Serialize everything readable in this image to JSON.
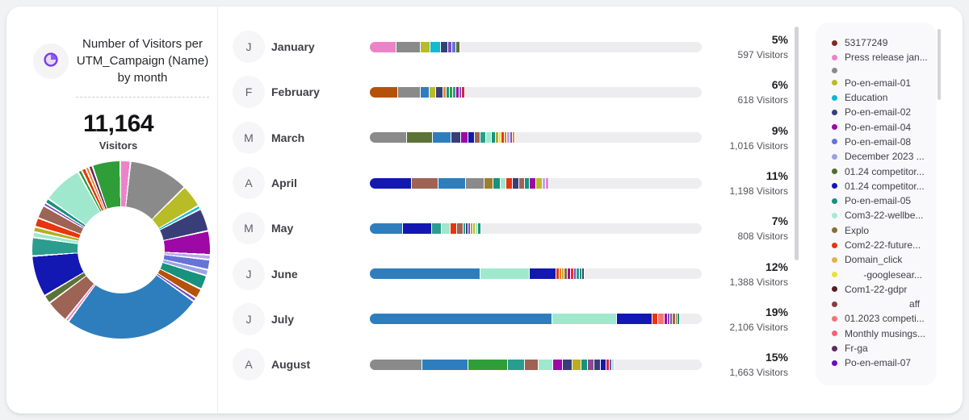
{
  "header": {
    "title": "Number of Visitors per UTM_Campaign (Name) by month",
    "icon": "donut-chart-icon"
  },
  "summary": {
    "total": "11,164",
    "label": "Visitors"
  },
  "palette": {
    "steelblue": "#2e7ebd",
    "gray": "#8a8a8a",
    "mint": "#9fe8cd",
    "navy": "#1318b2",
    "navyslate": "#3a3e78",
    "magenta": "#9d08a6",
    "olive": "#b8bc26",
    "cyan": "#16b9d4",
    "pink": "#ee82c8",
    "rust": "#b5520a",
    "orange": "#f5862c",
    "tealgreen": "#17927c",
    "green": "#2f9e38",
    "teal": "#2a9d8f",
    "violet": "#7a4fc2",
    "periwinkle": "#6674d8",
    "lightperiwinkle": "#9aa3e4",
    "olivegreen": "#5c7337",
    "brown": "#9d6354",
    "darkkhaki": "#9b7f2e",
    "red": "#e8350e",
    "crimson": "#d92433",
    "salmon": "#f4756e",
    "yellow": "#e6e33b",
    "darkyellow": "#b8ad25",
    "lightpurple": "#b9a8e8",
    "plum": "#8a4a8f",
    "orange2": "#fb7a12",
    "tan": "#8a6b35",
    "darkpurple": "#5c2a60"
  },
  "months": [
    {
      "initial": "J",
      "name": "January",
      "percent": "5%",
      "visitors": "597 Visitors",
      "segments": [
        [
          "pink",
          33
        ],
        [
          "gray",
          30
        ],
        [
          "olive",
          12
        ],
        [
          "cyan",
          13
        ],
        [
          "navyslate",
          9
        ],
        [
          "violet",
          5
        ],
        [
          "periwinkle",
          5
        ],
        [
          "olivegreen",
          5
        ]
      ]
    },
    {
      "initial": "F",
      "name": "February",
      "percent": "6%",
      "visitors": "618 Visitors",
      "segments": [
        [
          "rust",
          35
        ],
        [
          "gray",
          28
        ],
        [
          "steelblue",
          11
        ],
        [
          "olive",
          8
        ],
        [
          "navyslate",
          9
        ],
        [
          "orange",
          4
        ],
        [
          "tealgreen",
          4
        ],
        [
          "green",
          4
        ],
        [
          "teal",
          4
        ],
        [
          "magenta",
          4
        ],
        [
          "violet",
          3
        ],
        [
          "crimson",
          4
        ]
      ]
    },
    {
      "initial": "M",
      "name": "March",
      "percent": "9%",
      "visitors": "1,016 Visitors",
      "segments": [
        [
          "gray",
          46
        ],
        [
          "olivegreen",
          32
        ],
        [
          "steelblue",
          23
        ],
        [
          "navyslate",
          12
        ],
        [
          "magenta",
          9
        ],
        [
          "navy",
          8
        ],
        [
          "brown",
          7
        ],
        [
          "teal",
          7
        ],
        [
          "mint",
          7
        ],
        [
          "tealgreen",
          5
        ],
        [
          "darkyellow",
          4
        ],
        [
          "yellow",
          3
        ],
        [
          "red",
          4
        ],
        [
          "orange2",
          3
        ],
        [
          "lightpurple",
          4
        ],
        [
          "violet",
          3
        ],
        [
          "orange",
          3
        ]
      ]
    },
    {
      "initial": "A",
      "name": "April",
      "percent": "11%",
      "visitors": "1,198 Visitors",
      "segments": [
        [
          "navy",
          52
        ],
        [
          "brown",
          33
        ],
        [
          "steelblue",
          34
        ],
        [
          "gray",
          23
        ],
        [
          "darkkhaki",
          11
        ],
        [
          "tealgreen",
          9
        ],
        [
          "mint",
          7
        ],
        [
          "red",
          8
        ],
        [
          "navyslate",
          8
        ],
        [
          "brown",
          7
        ],
        [
          "tealgreen",
          6
        ],
        [
          "magenta",
          8
        ],
        [
          "olive",
          8
        ],
        [
          "lightpurple",
          4
        ],
        [
          "pink",
          4
        ]
      ]
    },
    {
      "initial": "M",
      "name": "May",
      "percent": "7%",
      "visitors": "808 Visitors",
      "segments": [
        [
          "steelblue",
          41
        ],
        [
          "navy",
          36
        ],
        [
          "teal",
          12
        ],
        [
          "mint",
          11
        ],
        [
          "red",
          8
        ],
        [
          "brown",
          8
        ],
        [
          "teal",
          3
        ],
        [
          "navyslate",
          3
        ],
        [
          "violet",
          3
        ],
        [
          "darkyellow",
          3
        ],
        [
          "olive",
          3
        ],
        [
          "mint",
          3
        ],
        [
          "tealgreen",
          4
        ]
      ]
    },
    {
      "initial": "J",
      "name": "June",
      "percent": "12%",
      "visitors": "1,388 Visitors",
      "segments": [
        [
          "steelblue",
          137
        ],
        [
          "mint",
          61
        ],
        [
          "navy",
          33
        ],
        [
          "red",
          4
        ],
        [
          "orange2",
          3
        ],
        [
          "darkyellow",
          3
        ],
        [
          "tan",
          4
        ],
        [
          "magenta",
          4
        ],
        [
          "red",
          4
        ],
        [
          "violet",
          3
        ],
        [
          "teal",
          4
        ],
        [
          "tealgreen",
          3
        ],
        [
          "navyslate",
          3
        ]
      ]
    },
    {
      "initial": "J",
      "name": "July",
      "percent": "19%",
      "visitors": "2,106 Visitors",
      "segments": [
        [
          "steelblue",
          226
        ],
        [
          "mint",
          80
        ],
        [
          "navy",
          44
        ],
        [
          "red",
          7
        ],
        [
          "salmon",
          8
        ],
        [
          "magenta",
          4
        ],
        [
          "violet",
          3
        ],
        [
          "plum",
          3
        ],
        [
          "brown",
          4
        ],
        [
          "tan",
          2
        ],
        [
          "tealgreen",
          3
        ]
      ]
    },
    {
      "initial": "A",
      "name": "August",
      "percent": "15%",
      "visitors": "1,663 Visitors",
      "segments": [
        [
          "gray",
          65
        ],
        [
          "steelblue",
          57
        ],
        [
          "green",
          49
        ],
        [
          "teal",
          21
        ],
        [
          "brown",
          17
        ],
        [
          "mint",
          18
        ],
        [
          "magenta",
          12
        ],
        [
          "navyslate",
          12
        ],
        [
          "darkyellow",
          11
        ],
        [
          "tealgreen",
          8
        ],
        [
          "plum",
          8
        ],
        [
          "navyslate",
          8
        ],
        [
          "navy",
          7
        ],
        [
          "crimson",
          4
        ],
        [
          "violet",
          3
        ],
        [
          "mint",
          3
        ]
      ]
    }
  ],
  "donut": {
    "segments": [
      [
        "pink",
        1.6
      ],
      [
        "gray",
        11
      ],
      [
        "olive",
        4
      ],
      [
        "cyan",
        0.4
      ],
      [
        "navyslate",
        4
      ],
      [
        "magenta",
        4.2
      ],
      [
        "lightpurple",
        0.6
      ],
      [
        "periwinkle",
        1.6
      ],
      [
        "lightperiwinkle",
        0.8
      ],
      [
        "tealgreen",
        2.4
      ],
      [
        "rust",
        1.6
      ],
      [
        "violet",
        0.4
      ],
      [
        "steelblue",
        26
      ],
      [
        "pink",
        0.3
      ],
      [
        "brown",
        4
      ],
      [
        "olivegreen",
        1.3
      ],
      [
        "navy",
        7.5
      ],
      [
        "teal",
        3.2
      ],
      [
        "mint",
        0.7
      ],
      [
        "darkyellow",
        0.7
      ],
      [
        "red",
        1.4
      ],
      [
        "brown",
        2.2
      ],
      [
        "violet",
        0.3
      ],
      [
        "tealgreen",
        0.6
      ],
      [
        "mint",
        7.2
      ],
      [
        "green",
        0.4
      ],
      [
        "red",
        0.5
      ],
      [
        "orange2",
        0.3
      ],
      [
        "darkpurple",
        0.4
      ],
      [
        "green",
        5
      ]
    ]
  },
  "legend": {
    "items": [
      {
        "color": "#7d2b22",
        "label": "53177249"
      },
      {
        "color": "#ee82c8",
        "label": "Press release jan..."
      },
      {
        "color": "#8a8a8a",
        "label": ""
      },
      {
        "color": "#b8bc26",
        "label": "Po-en-email-01"
      },
      {
        "color": "#0ab6d2",
        "label": "Education"
      },
      {
        "color": "#3a3e78",
        "label": "Po-en-email-02"
      },
      {
        "color": "#9d08a6",
        "label": "Po-en-email-04"
      },
      {
        "color": "#6674d8",
        "label": "Po-en-email-08"
      },
      {
        "color": "#9aa3e4",
        "label": "December 2023 ..."
      },
      {
        "color": "#556b2f",
        "label": "01.24 competitor..."
      },
      {
        "color": "#1317b5",
        "label": "01.24 competitor..."
      },
      {
        "color": "#17927c",
        "label": "Po-en-email-05"
      },
      {
        "color": "#a5ead2",
        "label": "Com3-22-wellbe..."
      },
      {
        "color": "#8a6b35",
        "label": "Explo"
      },
      {
        "color": "#e8350e",
        "label": "Com2-22-future..."
      },
      {
        "color": "#e3b04e",
        "label": "Domain_click"
      },
      {
        "color": "#e6e33b",
        "label": "       -googlesear..."
      },
      {
        "color": "#5a1c22",
        "label": "Com1-22-gdpr"
      },
      {
        "color": "#8c3a42",
        "label": "                        aff"
      },
      {
        "color": "#f4756e",
        "label": "01.2023 competi..."
      },
      {
        "color": "#fa5f78",
        "label": "Monthly musings..."
      },
      {
        "color": "#5c2a60",
        "label": "Fr-ga"
      },
      {
        "color": "#6d0bc0",
        "label": "Po-en-email-07"
      }
    ]
  },
  "chart_data": [
    {
      "type": "bar",
      "title": "Number of Visitors per UTM_Campaign (Name) by month",
      "categories": [
        "January",
        "February",
        "March",
        "April",
        "May",
        "June",
        "July",
        "August"
      ],
      "values": [
        597,
        618,
        1016,
        1198,
        808,
        1388,
        2106,
        1663
      ],
      "percent_labels": [
        "5%",
        "6%",
        "9%",
        "11%",
        "7%",
        "12%",
        "19%",
        "15%"
      ],
      "total_visitors": 11164,
      "xlabel": "",
      "ylabel": "Visitors",
      "layout": "horizontal stacked bars, one row per month, gray track as remainder, legend at right"
    },
    {
      "type": "pie",
      "title": "Visitors share by UTM campaign (donut)",
      "total_label": "11,164 Visitors",
      "approx_shares_pct": [
        1.6,
        11,
        4,
        0.4,
        4,
        4.2,
        0.6,
        1.6,
        0.8,
        2.4,
        1.6,
        0.4,
        26,
        0.3,
        4,
        1.3,
        7.5,
        3.2,
        0.7,
        0.7,
        1.4,
        2.2,
        0.3,
        0.6,
        7.2,
        0.4,
        0.5,
        0.3,
        0.4,
        5
      ]
    }
  ]
}
